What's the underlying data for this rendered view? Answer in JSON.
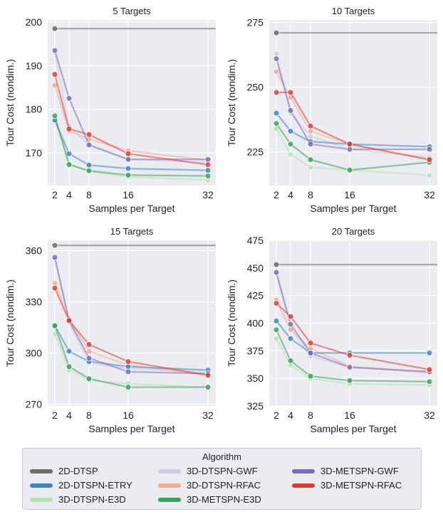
{
  "chart_data": [
    {
      "type": "line",
      "title": "5 Targets",
      "xlabel": "Samples per Target",
      "ylabel": "Tour Cost (nondim.)",
      "x": [
        2,
        4,
        8,
        16,
        32
      ],
      "xticks": [
        "2",
        "4",
        "8",
        "16",
        "32"
      ],
      "yticks": [
        170,
        180,
        190,
        200
      ],
      "ylim": [
        162.5,
        200.5
      ],
      "series": [
        {
          "name": "2D-DTSP",
          "values": [
            198.5,
            198.5,
            198.5,
            198.5,
            198.5
          ]
        },
        {
          "name": "2D-DTSPN-ETRY",
          "values": [
            177.5,
            169.8,
            167.2,
            166.4,
            166.0
          ]
        },
        {
          "name": "3D-DTSPN-E3D",
          "values": [
            177.5,
            167.5,
            165.8,
            164.5,
            163.8
          ]
        },
        {
          "name": "3D-DTSPN-GWF",
          "values": [
            193.0,
            176.0,
            171.8,
            168.5,
            167.8
          ]
        },
        {
          "name": "3D-DTSPN-RFAC",
          "values": [
            185.5,
            175.0,
            173.2,
            170.5,
            168.3
          ]
        },
        {
          "name": "3D-METSPN-E3D",
          "values": [
            178.5,
            167.3,
            165.9,
            164.9,
            164.7
          ]
        },
        {
          "name": "3D-METSPN-GWF",
          "values": [
            193.5,
            182.5,
            171.8,
            168.5,
            168.5
          ]
        },
        {
          "name": "3D-METSPN-RFAC",
          "values": [
            188.0,
            175.5,
            174.2,
            169.8,
            167.3
          ]
        }
      ]
    },
    {
      "type": "line",
      "title": "10 Targets",
      "xlabel": "Samples per Target",
      "ylabel": "Tour Cost (nondim.)",
      "x": [
        2,
        4,
        8,
        16,
        32
      ],
      "xticks": [
        "2",
        "4",
        "8",
        "16",
        "32"
      ],
      "yticks": [
        225,
        250,
        275
      ],
      "ylim": [
        212,
        276
      ],
      "series": [
        {
          "name": "2D-DTSP",
          "values": [
            271,
            271,
            271,
            271,
            271
          ]
        },
        {
          "name": "2D-DTSPN-ETRY",
          "values": [
            240,
            233,
            229,
            228,
            227
          ]
        },
        {
          "name": "3D-DTSPN-E3D",
          "values": [
            234,
            224,
            219,
            218,
            216
          ]
        },
        {
          "name": "3D-DTSPN-GWF",
          "values": [
            263,
            240,
            231,
            226,
            223
          ]
        },
        {
          "name": "3D-DTSPN-RFAC",
          "values": [
            256,
            246,
            233,
            228,
            222
          ]
        },
        {
          "name": "3D-METSPN-E3D",
          "values": [
            236,
            228,
            222,
            218,
            221
          ]
        },
        {
          "name": "3D-METSPN-GWF",
          "values": [
            261,
            241,
            228,
            226,
            226
          ]
        },
        {
          "name": "3D-METSPN-RFAC",
          "values": [
            248,
            248,
            235,
            228,
            222
          ]
        }
      ]
    },
    {
      "type": "line",
      "title": "15 Targets",
      "xlabel": "Samples per Target",
      "ylabel": "Tour Cost (nondim.)",
      "x": [
        2,
        4,
        8,
        16,
        32
      ],
      "xticks": [
        "2",
        "4",
        "8",
        "16",
        "32"
      ],
      "yticks": [
        270,
        300,
        330,
        360
      ],
      "ylim": [
        269,
        366
      ],
      "series": [
        {
          "name": "2D-DTSP",
          "values": [
            363,
            363,
            363,
            363,
            363
          ]
        },
        {
          "name": "2D-DTSPN-ETRY",
          "values": [
            316,
            301,
            295,
            292,
            290
          ]
        },
        {
          "name": "3D-DTSPN-E3D",
          "values": [
            311,
            290,
            284,
            282,
            280
          ]
        },
        {
          "name": "3D-DTSPN-GWF",
          "values": [
            355,
            318,
            294,
            291,
            289
          ]
        },
        {
          "name": "3D-DTSPN-RFAC",
          "values": [
            341,
            320,
            301,
            293,
            287
          ]
        },
        {
          "name": "3D-METSPN-E3D",
          "values": [
            316,
            292,
            285,
            280,
            280
          ]
        },
        {
          "name": "3D-METSPN-GWF",
          "values": [
            356,
            319,
            297,
            289,
            288
          ]
        },
        {
          "name": "3D-METSPN-RFAC",
          "values": [
            338,
            319,
            305,
            295,
            287
          ]
        }
      ]
    },
    {
      "type": "line",
      "title": "20 Targets",
      "xlabel": "Samples per Target",
      "ylabel": "Tour Cost (nondim.)",
      "x": [
        2,
        4,
        8,
        16,
        32
      ],
      "xticks": [
        "2",
        "4",
        "8",
        "16",
        "32"
      ],
      "yticks": [
        325,
        350,
        375,
        400,
        425,
        450,
        475
      ],
      "ylim": [
        325,
        475
      ],
      "series": [
        {
          "name": "2D-DTSP",
          "values": [
            453,
            453,
            453,
            453,
            453
          ]
        },
        {
          "name": "2D-DTSPN-ETRY",
          "values": [
            402,
            386,
            373,
            373,
            373
          ]
        },
        {
          "name": "3D-DTSPN-E3D",
          "values": [
            386,
            362,
            350,
            345,
            344
          ]
        },
        {
          "name": "3D-DTSPN-GWF",
          "values": [
            445,
            395,
            370,
            360,
            356
          ]
        },
        {
          "name": "3D-DTSPN-RFAC",
          "values": [
            421,
            394,
            377,
            361,
            355
          ]
        },
        {
          "name": "3D-METSPN-E3D",
          "values": [
            394,
            366,
            352,
            348,
            347
          ]
        },
        {
          "name": "3D-METSPN-GWF",
          "values": [
            446,
            399,
            373,
            360,
            356
          ]
        },
        {
          "name": "3D-METSPN-RFAC",
          "values": [
            418,
            406,
            382,
            371,
            358
          ]
        }
      ]
    }
  ],
  "legend": {
    "title": "Algorithm",
    "items": [
      {
        "label": "2D-DTSP",
        "color": "#6b6b6b"
      },
      {
        "label": "3D-DTSPN-GWF",
        "color": "#cdcbe3"
      },
      {
        "label": "3D-METSPN-GWF",
        "color": "#7b6bb5"
      },
      {
        "label": "2D-DTSPN-ETRY",
        "color": "#3a86c0"
      },
      {
        "label": "3D-DTSPN-RFAC",
        "color": "#f4ab92"
      },
      {
        "label": "3D-METSPN-RFAC",
        "color": "#e03b2c"
      },
      {
        "label": "3D-DTSPN-E3D",
        "color": "#b7e2b1"
      },
      {
        "label": "3D-METSPN-E3D",
        "color": "#39a356"
      }
    ]
  },
  "series_colors": {
    "2D-DTSP": "#6b6b6b",
    "2D-DTSPN-ETRY": "#3a86c0",
    "3D-DTSPN-E3D": "#b7e2b1",
    "3D-DTSPN-GWF": "#cdcbe3",
    "3D-DTSPN-RFAC": "#f4ab92",
    "3D-METSPN-E3D": "#39a356",
    "3D-METSPN-GWF": "#7b6bb5",
    "3D-METSPN-RFAC": "#e03b2c"
  },
  "colors": {
    "panel_bg": "#ebebf2",
    "grid": "#ffffff"
  }
}
